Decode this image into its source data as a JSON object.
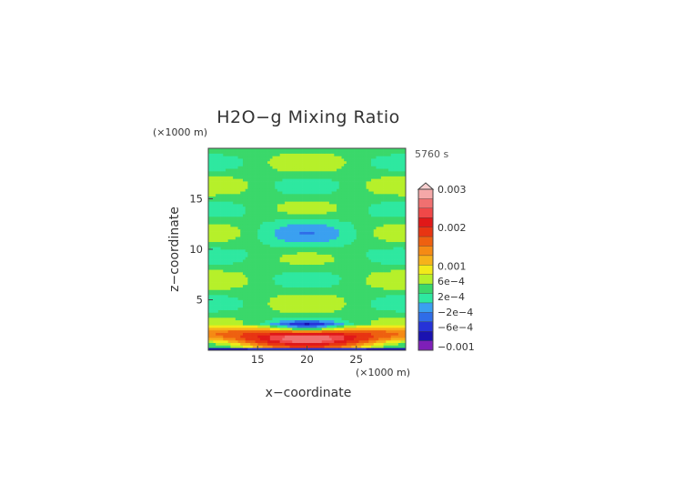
{
  "chart_data": {
    "type": "heatmap",
    "title": "H2O−g Mixing Ratio",
    "xlabel": "x−coordinate",
    "ylabel": "z−coordinate",
    "x_unit": "(×1000 m)",
    "y_unit": "(×1000 m)",
    "time_label": "5760 s",
    "xlim": [
      10,
      30
    ],
    "ylim": [
      0,
      20
    ],
    "xticks": [
      15,
      20,
      25
    ],
    "yticks": [
      5,
      10,
      15
    ],
    "grid": false,
    "colorbar": {
      "placement": "right",
      "levels": [
        {
          "value": -0.0012,
          "color": "#7e1fb8"
        },
        {
          "value": -0.0008,
          "color": "#1a12b0"
        },
        {
          "value": -0.0006,
          "color": "#2633d8"
        },
        {
          "value": -0.0004,
          "color": "#2f6de8"
        },
        {
          "value": -0.0002,
          "color": "#3aa0f0"
        },
        {
          "value": 0.0,
          "color": "#2ee8a0"
        },
        {
          "value": 0.0002,
          "color": "#3ad86a"
        },
        {
          "value": 0.0004,
          "color": "#b6f02a"
        },
        {
          "value": 0.0006,
          "color": "#f2ea1a"
        },
        {
          "value": 0.0008,
          "color": "#f6b21a"
        },
        {
          "value": 0.001,
          "color": "#f58a14"
        },
        {
          "value": 0.0013,
          "color": "#ee6010"
        },
        {
          "value": 0.0017,
          "color": "#e83512"
        },
        {
          "value": 0.002,
          "color": "#e01818"
        },
        {
          "value": 0.0023,
          "color": "#f04848"
        },
        {
          "value": 0.0027,
          "color": "#f07070"
        },
        {
          "value": 0.003,
          "color": "#f5a8a8"
        }
      ],
      "tick_labels": [
        {
          "value": 0.003,
          "label": "0.003"
        },
        {
          "value": 0.002,
          "label": "0.002"
        },
        {
          "value": 0.001,
          "label": "0.001"
        },
        {
          "value": 0.0006,
          "label": "6e−4"
        },
        {
          "value": 0.0002,
          "label": "2e−4"
        },
        {
          "value": -0.0002,
          "label": "−2e−4"
        },
        {
          "value": -0.0006,
          "label": "−6e−4"
        },
        {
          "value": -0.0011,
          "label": "−0.001"
        }
      ]
    }
  }
}
